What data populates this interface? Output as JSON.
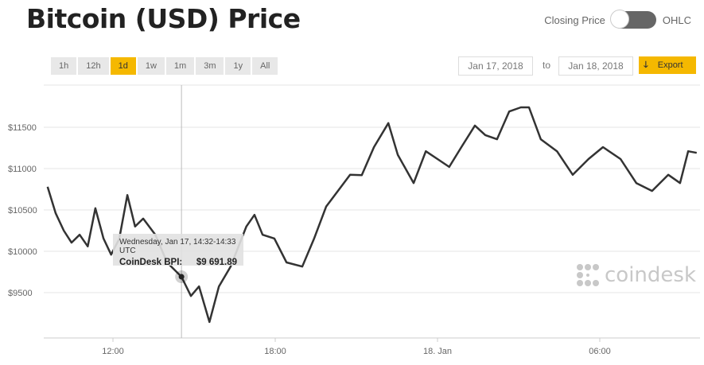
{
  "header": {
    "title": "Bitcoin (USD) Price",
    "toggle_left": "Closing Price",
    "toggle_right": "OHLC"
  },
  "ranges": [
    "1h",
    "12h",
    "1d",
    "1w",
    "1m",
    "3m",
    "1y",
    "All"
  ],
  "active_range": "1d",
  "date_from": "Jan 17, 2018",
  "date_to": "Jan 18, 2018",
  "to_label": "to",
  "export_label": "Export",
  "accent": "#f5b800",
  "logo_text": "coindesk",
  "tooltip": {
    "time": "Wednesday, Jan 17, 14:32-14:33 UTC",
    "label": "CoinDesk BPI:",
    "value": "$9 691.89"
  },
  "chart_data": {
    "type": "line",
    "ylabel": "",
    "xlabel": "",
    "ylim": [
      9050,
      11950
    ],
    "yticks": [
      {
        "v": 9500,
        "label": "$9500"
      },
      {
        "v": 10000,
        "label": "$10000"
      },
      {
        "v": 10500,
        "label": "$10500"
      },
      {
        "v": 11000,
        "label": "$11000"
      },
      {
        "v": 11500,
        "label": "$11500"
      }
    ],
    "xticks": [
      {
        "t": "2018-01-17T12:00",
        "label": "12:00"
      },
      {
        "t": "2018-01-17T18:00",
        "label": "18:00"
      },
      {
        "t": "2018-01-18T00:00",
        "label": "18. Jan"
      },
      {
        "t": "2018-01-18T06:00",
        "label": "06:00"
      }
    ],
    "grid": true,
    "color": "#333333",
    "series": [
      {
        "points": [
          [
            "2018-01-17T09:35",
            10780
          ],
          [
            "2018-01-17T09:53",
            10460
          ],
          [
            "2018-01-17T10:11",
            10250
          ],
          [
            "2018-01-17T10:28",
            10105
          ],
          [
            "2018-01-17T10:46",
            10200
          ],
          [
            "2018-01-17T11:04",
            10060
          ],
          [
            "2018-01-17T11:21",
            10520
          ],
          [
            "2018-01-17T11:39",
            10155
          ],
          [
            "2018-01-17T11:56",
            9960
          ],
          [
            "2018-01-17T12:14",
            10150
          ],
          [
            "2018-01-17T12:32",
            10680
          ],
          [
            "2018-01-17T12:49",
            10300
          ],
          [
            "2018-01-17T13:07",
            10395
          ],
          [
            "2018-01-17T13:34",
            10200
          ],
          [
            "2018-01-17T14:00",
            9865
          ],
          [
            "2018-01-17T14:32",
            9692
          ],
          [
            "2018-01-17T14:53",
            9460
          ],
          [
            "2018-01-17T15:11",
            9575
          ],
          [
            "2018-01-17T15:34",
            9145
          ],
          [
            "2018-01-17T15:55",
            9575
          ],
          [
            "2018-01-17T16:21",
            9815
          ],
          [
            "2018-01-17T16:56",
            10300
          ],
          [
            "2018-01-17T17:14",
            10440
          ],
          [
            "2018-01-17T17:32",
            10200
          ],
          [
            "2018-01-17T17:58",
            10155
          ],
          [
            "2018-01-17T18:25",
            9865
          ],
          [
            "2018-01-17T19:00",
            9815
          ],
          [
            "2018-01-17T19:26",
            10150
          ],
          [
            "2018-01-17T19:53",
            10540
          ],
          [
            "2018-01-17T20:19",
            10730
          ],
          [
            "2018-01-17T20:46",
            10925
          ],
          [
            "2018-01-17T21:12",
            10920
          ],
          [
            "2018-01-17T21:39",
            11260
          ],
          [
            "2018-01-17T22:11",
            11550
          ],
          [
            "2018-01-17T22:32",
            11165
          ],
          [
            "2018-01-17T23:07",
            10825
          ],
          [
            "2018-01-17T23:34",
            11210
          ],
          [
            "2018-01-18T00:00",
            11115
          ],
          [
            "2018-01-18T00:26",
            11020
          ],
          [
            "2018-01-18T00:53",
            11260
          ],
          [
            "2018-01-18T01:23",
            11520
          ],
          [
            "2018-01-18T01:46",
            11405
          ],
          [
            "2018-01-18T02:12",
            11355
          ],
          [
            "2018-01-18T02:39",
            11690
          ],
          [
            "2018-01-18T03:05",
            11740
          ],
          [
            "2018-01-18T03:23",
            11740
          ],
          [
            "2018-01-18T03:49",
            11355
          ],
          [
            "2018-01-18T04:25",
            11210
          ],
          [
            "2018-01-18T05:00",
            10925
          ],
          [
            "2018-01-18T05:35",
            11115
          ],
          [
            "2018-01-18T06:07",
            11260
          ],
          [
            "2018-01-18T06:46",
            11115
          ],
          [
            "2018-01-18T07:21",
            10825
          ],
          [
            "2018-01-18T07:56",
            10730
          ],
          [
            "2018-01-18T08:32",
            10925
          ],
          [
            "2018-01-18T08:58",
            10825
          ],
          [
            "2018-01-18T09:16",
            11210
          ],
          [
            "2018-01-18T09:35",
            11190
          ]
        ]
      }
    ],
    "highlight": {
      "t": "2018-01-17T14:32",
      "v": 9691.89
    }
  }
}
